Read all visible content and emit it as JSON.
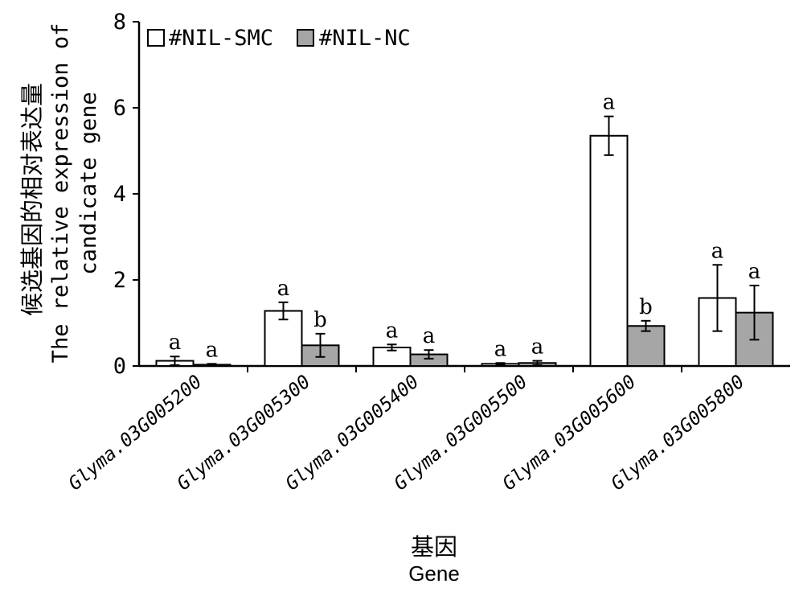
{
  "chart_data": {
    "type": "bar",
    "categories": [
      "Glyma.03G005200",
      "Glyma.03G005300",
      "Glyma.03G005400",
      "Glyma.03G005500",
      "Glyma.03G005600",
      "Glyma.03G005800"
    ],
    "series": [
      {
        "name": "#NIL-SMC",
        "color": "#ffffff",
        "values": [
          0.12,
          1.28,
          0.43,
          0.05,
          5.35,
          1.58
        ],
        "errors": [
          0.1,
          0.2,
          0.07,
          0.02,
          0.45,
          0.77
        ],
        "significance": [
          "a",
          "a",
          "a",
          "a",
          "a",
          "a"
        ]
      },
      {
        "name": "#NIL-NC",
        "color": "#a6a6a6",
        "values": [
          0.03,
          0.48,
          0.27,
          0.07,
          0.93,
          1.24
        ],
        "errors": [
          0.02,
          0.27,
          0.1,
          0.05,
          0.12,
          0.63
        ],
        "significance": [
          "a",
          "b",
          "a",
          "a",
          "b",
          "a"
        ]
      }
    ],
    "ylabel_zh": "候选基因的相对表达量",
    "ylabel_en_1": "The relative expression of",
    "ylabel_en_2": "candicate gene",
    "xlabel_zh": "基因",
    "xlabel_en": "Gene",
    "ylim": [
      0,
      8
    ],
    "yticks": [
      "0",
      "2",
      "4",
      "6",
      "8"
    ],
    "legend_position": "top-left",
    "grid": false
  }
}
